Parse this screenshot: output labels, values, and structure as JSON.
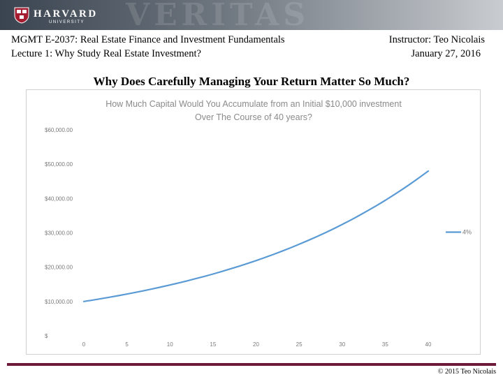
{
  "header": {
    "logo_word": "HARVARD",
    "logo_sub": "UNIVERSITY",
    "watermark": "VERITAS",
    "course": "MGMT E-2037: Real Estate Finance and Investment Fundamentals",
    "lecture": "Lecture 1: Why Study Real Estate Investment?",
    "instructor": "Instructor: Teo Nicolais",
    "date": "January 27, 2016"
  },
  "slide_title": "Why Does Carefully Managing Your Return Matter So Much?",
  "footer": {
    "copyright": "© 2015 Teo Nicolais"
  },
  "colors": {
    "brand": "#a51c30",
    "footer_rule": "#6d1a3a",
    "series": "#5b9bd5"
  },
  "chart_data": {
    "type": "line",
    "title": "How Much Capital Would You Accumulate from an Initial $10,000 investment Over The Course of 40 years?",
    "title_lines": [
      "How Much Capital Would You Accumulate from an Initial $10,000 investment",
      "Over The Course of 40 years?"
    ],
    "xlabel": "",
    "ylabel": "",
    "x_ticks": [
      0,
      5,
      10,
      15,
      20,
      25,
      30,
      35,
      40
    ],
    "y_ticks": [
      0,
      10000,
      20000,
      30000,
      40000,
      50000,
      60000
    ],
    "y_tick_labels": [
      "$",
      "$10,000.00",
      "$20,000.00",
      "$30,000.00",
      "$40,000.00",
      "$50,000.00",
      "$60,000.00"
    ],
    "xlim": [
      0,
      40
    ],
    "ylim": [
      0,
      60000
    ],
    "grid": false,
    "legend_position": "right",
    "series": [
      {
        "name": "4%",
        "color": "#5b9bd5",
        "x": [
          0,
          1,
          2,
          3,
          4,
          5,
          6,
          7,
          8,
          9,
          10,
          11,
          12,
          13,
          14,
          15,
          16,
          17,
          18,
          19,
          20,
          21,
          22,
          23,
          24,
          25,
          26,
          27,
          28,
          29,
          30,
          31,
          32,
          33,
          34,
          35,
          36,
          37,
          38,
          39,
          40
        ],
        "values": [
          10000,
          10400,
          10816,
          11249,
          11699,
          12167,
          12653,
          13159,
          13686,
          14233,
          14802,
          15395,
          16010,
          16651,
          17317,
          18009,
          18730,
          19479,
          20258,
          21068,
          21911,
          22788,
          23699,
          24647,
          25633,
          26658,
          27725,
          28834,
          29987,
          31187,
          32434,
          33731,
          35081,
          36484,
          37943,
          39461,
          41039,
          42681,
          44388,
          46164,
          48010
        ]
      }
    ]
  }
}
